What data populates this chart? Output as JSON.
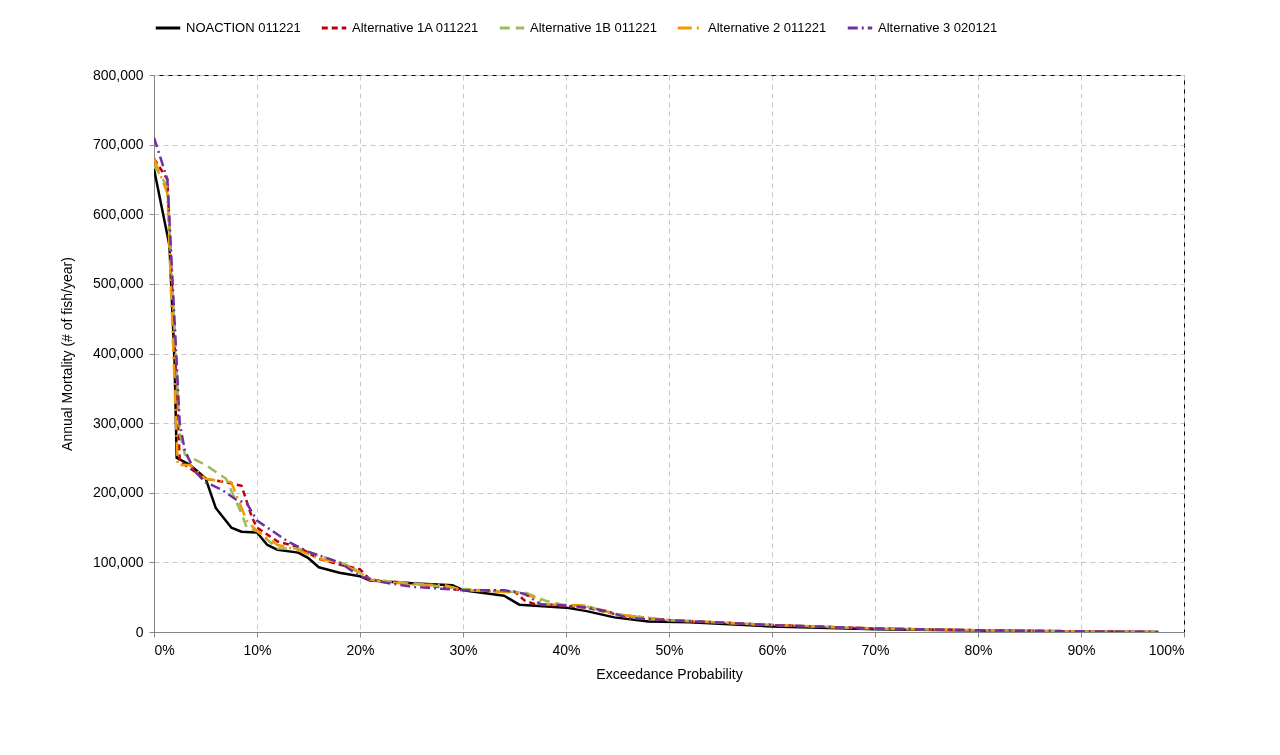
{
  "chart_data": {
    "type": "line",
    "xlabel": "Exceedance Probability",
    "ylabel": "Annual Mortality (# of fish/year)",
    "xlim": [
      0,
      100
    ],
    "xticks": [
      {
        "value": 0,
        "label": "0%"
      },
      {
        "value": 10,
        "label": "10%"
      },
      {
        "value": 20,
        "label": "20%"
      },
      {
        "value": 30,
        "label": "30%"
      },
      {
        "value": 40,
        "label": "40%"
      },
      {
        "value": 50,
        "label": "50%"
      },
      {
        "value": 60,
        "label": "60%"
      },
      {
        "value": 70,
        "label": "70%"
      },
      {
        "value": 80,
        "label": "80%"
      },
      {
        "value": 90,
        "label": "90%"
      },
      {
        "value": 100,
        "label": "100%"
      }
    ],
    "ylim": [
      0,
      800000
    ],
    "yticks": [
      {
        "value": 0,
        "label": "0"
      },
      {
        "value": 100000,
        "label": "100,000"
      },
      {
        "value": 200000,
        "label": "200,000"
      },
      {
        "value": 300000,
        "label": "300,000"
      },
      {
        "value": 400000,
        "label": "400,000"
      },
      {
        "value": 500000,
        "label": "500,000"
      },
      {
        "value": 600000,
        "label": "600,000"
      },
      {
        "value": 700000,
        "label": "700,000"
      },
      {
        "value": 800000,
        "label": "800,000"
      }
    ],
    "grid": true,
    "legend": "top",
    "marker": "none",
    "series": [
      {
        "name": "NOACTION 011221",
        "color": "#000000",
        "line_style": "solid",
        "x": [
          0,
          1.5,
          2,
          2.2,
          3.5,
          5,
          6,
          7.5,
          8.5,
          10,
          11,
          12,
          14,
          15,
          16,
          18,
          20,
          21,
          25,
          29,
          30,
          34,
          35.5,
          40,
          42,
          44.7,
          48,
          52,
          60,
          70,
          80,
          90,
          97.5
        ],
        "values": [
          665000,
          555000,
          387000,
          250000,
          240000,
          221000,
          178000,
          150000,
          144000,
          143000,
          125000,
          118000,
          114000,
          106000,
          93000,
          85000,
          80000,
          74000,
          70000,
          67000,
          60000,
          52000,
          39000,
          35000,
          30000,
          21000,
          15000,
          14000,
          8000,
          4000,
          2000,
          500,
          0
        ]
      },
      {
        "name": "Alternative 1A 011221",
        "color": "#c00000",
        "line_style": "dashed",
        "x": [
          0,
          1.3,
          2.5,
          3.5,
          5,
          7,
          8.5,
          9.5,
          10,
          12,
          14,
          16,
          18,
          20,
          21,
          25,
          30,
          35,
          36,
          37,
          40,
          42,
          45,
          50,
          60,
          70,
          80,
          90,
          97.5
        ],
        "values": [
          680000,
          650000,
          245000,
          235000,
          220000,
          215000,
          210000,
          165000,
          150000,
          130000,
          122000,
          105000,
          97000,
          90000,
          75000,
          70000,
          60000,
          58000,
          45000,
          40000,
          37000,
          35000,
          25000,
          17000,
          10000,
          5000,
          2500,
          1000,
          0
        ]
      },
      {
        "name": "Alternative 1B 011221",
        "color": "#9bbb59",
        "line_style": "dashed",
        "x": [
          0,
          1.3,
          2.5,
          3,
          5,
          7,
          8.5,
          9,
          10,
          12,
          14,
          16,
          19,
          21,
          25,
          30,
          34,
          36,
          38,
          40,
          42,
          45,
          50,
          60,
          70,
          80,
          90,
          97.5
        ],
        "values": [
          670000,
          640000,
          285000,
          255000,
          240000,
          220000,
          170000,
          150000,
          145000,
          120000,
          120000,
          110000,
          95000,
          75000,
          70000,
          62000,
          58000,
          57000,
          45000,
          38000,
          37000,
          25000,
          17000,
          10000,
          5000,
          2500,
          1000,
          0
        ]
      },
      {
        "name": "Alternative 2 011221",
        "color": "#f09a00",
        "line_style": "dashed",
        "x": [
          0,
          1.3,
          2.3,
          3.5,
          5,
          7.5,
          9,
          10,
          12,
          14,
          16,
          18,
          20,
          21,
          25,
          28,
          30,
          35,
          37,
          38,
          42,
          45,
          50,
          60,
          70,
          80,
          90,
          97.5
        ],
        "values": [
          680000,
          630000,
          240000,
          240000,
          220000,
          215000,
          160000,
          145000,
          125000,
          118000,
          105000,
          100000,
          85000,
          75000,
          68000,
          68000,
          60000,
          57000,
          50000,
          40000,
          38000,
          25000,
          17000,
          10000,
          5000,
          2500,
          1000,
          0
        ]
      },
      {
        "name": "Alternative 3 020121",
        "color": "#7030a0",
        "line_style": "dashed",
        "x": [
          0,
          1.3,
          2.5,
          3,
          4,
          5,
          6.5,
          8,
          9,
          10,
          11,
          13,
          15,
          18,
          20,
          22,
          25,
          30,
          34,
          36,
          37.5,
          40,
          42,
          44,
          46,
          50,
          60,
          70,
          80,
          90,
          97.5
        ],
        "values": [
          710000,
          650000,
          300000,
          260000,
          230000,
          215000,
          205000,
          190000,
          185000,
          160000,
          150000,
          130000,
          115000,
          100000,
          80000,
          72000,
          65000,
          60000,
          60000,
          55000,
          40000,
          38000,
          35000,
          30000,
          20000,
          17000,
          10000,
          5000,
          2500,
          1000,
          0
        ]
      }
    ]
  }
}
